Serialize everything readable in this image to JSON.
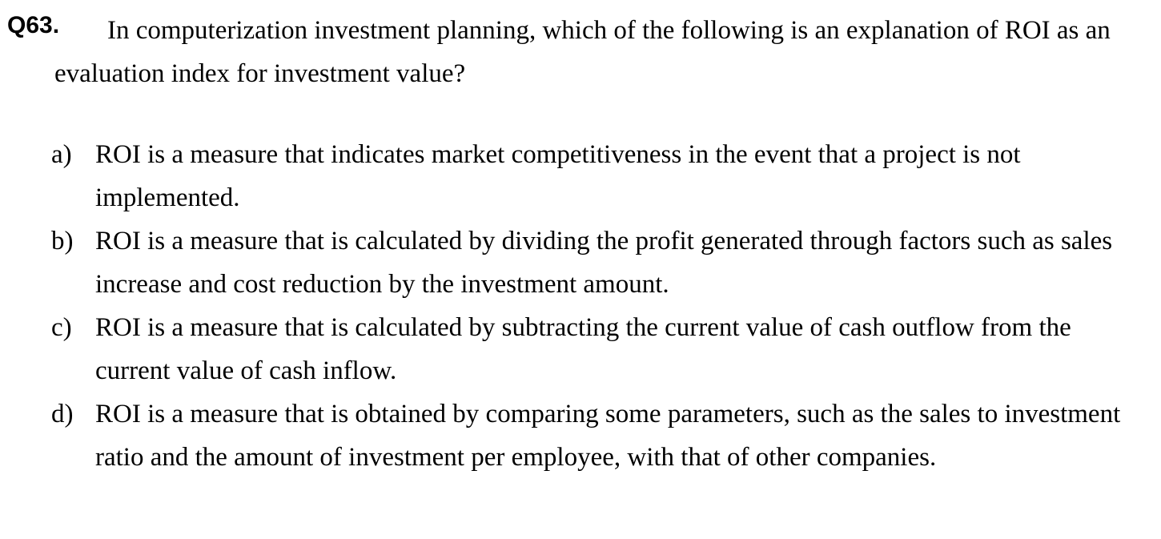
{
  "question": {
    "number": "Q63.",
    "text": "In computerization investment planning, which of the following is an explanation of ROI as an evaluation index for investment value?"
  },
  "options": [
    {
      "letter": "a)",
      "text": "ROI is a measure that indicates market competitiveness in the event that a project is not implemented."
    },
    {
      "letter": "b)",
      "text": "ROI is a measure that is calculated by dividing the profit generated through factors such as sales increase and cost reduction by the investment amount."
    },
    {
      "letter": "c)",
      "text": "ROI is a measure that is calculated by subtracting the current value of cash outflow from the current value of cash inflow."
    },
    {
      "letter": "d)",
      "text": "ROI is a measure that is obtained by comparing some parameters, such as the sales to investment ratio and the amount of investment per employee, with that of other companies."
    }
  ]
}
